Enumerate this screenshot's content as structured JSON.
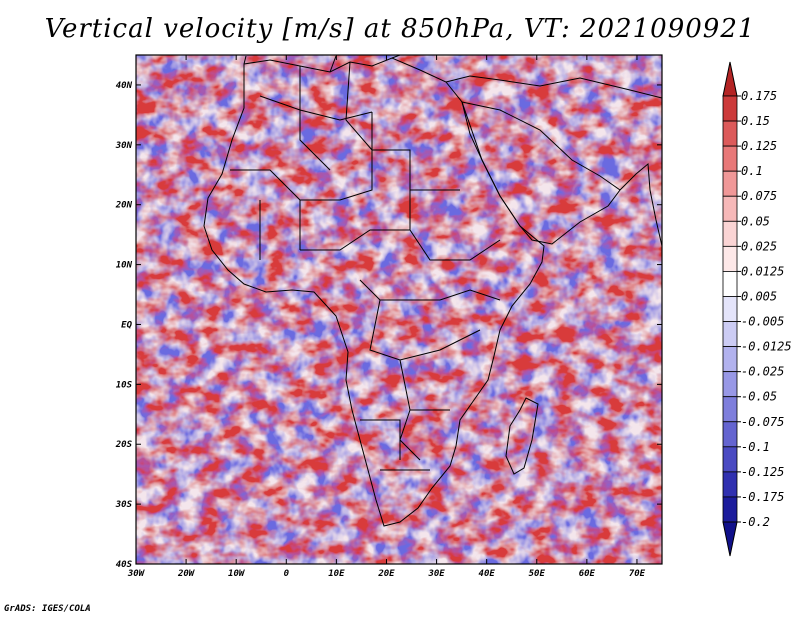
{
  "title": "Vertical velocity [m/s] at 850hPa, VT: 2021090921",
  "credit": "GrADS: IGES/COLA",
  "map": {
    "lon_ticks": [
      "30W",
      "20W",
      "10W",
      "0",
      "10E",
      "20E",
      "30E",
      "40E",
      "50E",
      "60E",
      "70E"
    ],
    "lat_ticks": [
      "40N",
      "30N",
      "20N",
      "10N",
      "EQ",
      "10S",
      "20S",
      "30S",
      "40S"
    ],
    "lon_range": [
      -30,
      75
    ],
    "lat_range": [
      -40,
      45
    ]
  },
  "colorbar": {
    "levels": [
      "0.175",
      "0.15",
      "0.125",
      "0.1",
      "0.075",
      "0.05",
      "0.025",
      "0.0125",
      "0.005",
      "-0.005",
      "-0.0125",
      "-0.025",
      "-0.05",
      "-0.075",
      "-0.1",
      "-0.125",
      "-0.175",
      "-0.2"
    ],
    "colors": [
      "#b42424",
      "#cc3a3a",
      "#dc5a5a",
      "#e87878",
      "#f09898",
      "#f6b8b8",
      "#fad4d4",
      "#fde8e8",
      "#ffffff",
      "#e4e4fa",
      "#ccccf4",
      "#b2b2ee",
      "#9898e6",
      "#7e7edc",
      "#6464d0",
      "#4a4ac2",
      "#3030b0",
      "#1c1c9c",
      "#10108a"
    ]
  }
}
